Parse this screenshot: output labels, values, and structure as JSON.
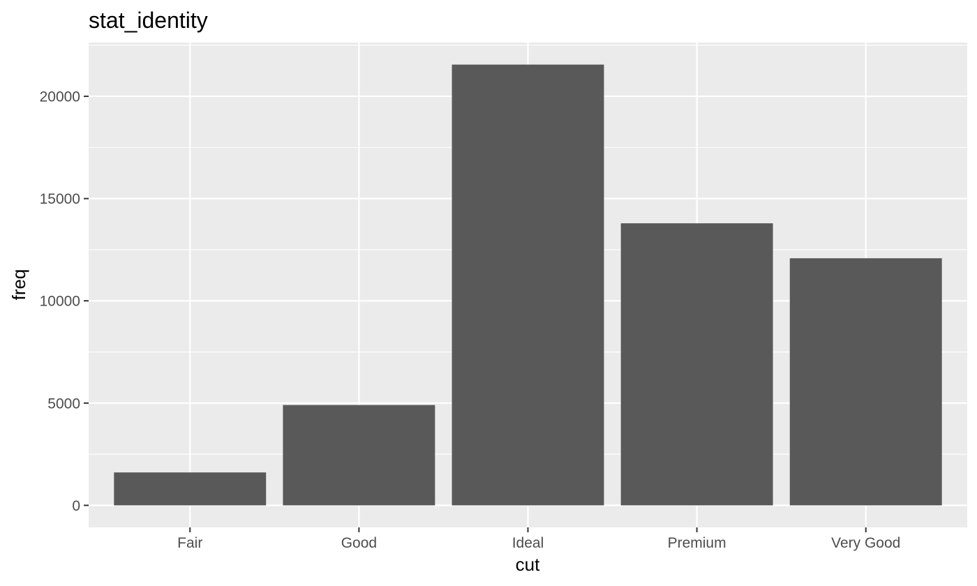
{
  "colors": {
    "panel_background": "#EBEBEB",
    "grid": "#FFFFFF",
    "bar_fill": "#595959",
    "tick": "#333333",
    "tick_label": "#4D4D4D",
    "text": "#000000"
  },
  "chart_data": {
    "type": "bar",
    "title": "stat_identity",
    "xlabel": "cut",
    "ylabel": "freq",
    "categories": [
      "Fair",
      "Good",
      "Ideal",
      "Premium",
      "Very Good"
    ],
    "values": [
      1610,
      4906,
      21551,
      13791,
      12082
    ],
    "ylim": [
      -1078,
      22629
    ],
    "yticks": [
      0,
      5000,
      10000,
      15000,
      20000
    ],
    "ytick_labels": [
      "0",
      "5000",
      "10000",
      "15000",
      "20000"
    ],
    "grid": true,
    "legend": "none"
  }
}
